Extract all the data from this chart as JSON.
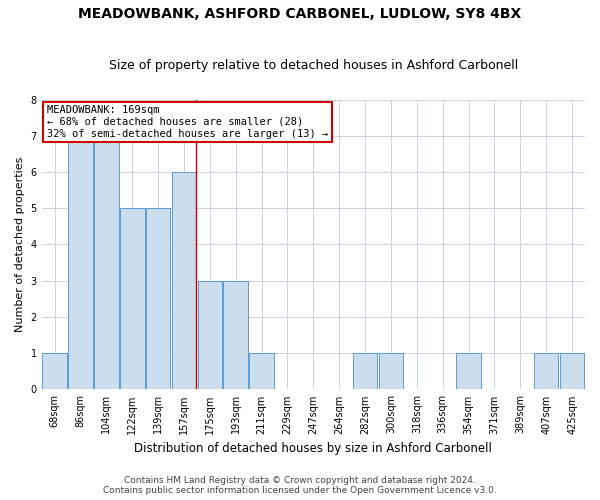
{
  "title1": "MEADOWBANK, ASHFORD CARBONEL, LUDLOW, SY8 4BX",
  "title2": "Size of property relative to detached houses in Ashford Carbonell",
  "xlabel": "Distribution of detached houses by size in Ashford Carbonell",
  "ylabel": "Number of detached properties",
  "categories": [
    "68sqm",
    "86sqm",
    "104sqm",
    "122sqm",
    "139sqm",
    "157sqm",
    "175sqm",
    "193sqm",
    "211sqm",
    "229sqm",
    "247sqm",
    "264sqm",
    "282sqm",
    "300sqm",
    "318sqm",
    "336sqm",
    "354sqm",
    "371sqm",
    "389sqm",
    "407sqm",
    "425sqm"
  ],
  "values": [
    1,
    7,
    7,
    5,
    5,
    6,
    3,
    3,
    1,
    0,
    0,
    0,
    1,
    1,
    0,
    0,
    1,
    0,
    0,
    1,
    1
  ],
  "bar_color": "#ccdded",
  "bar_edge_color": "#5b9bd5",
  "red_line_index": 5,
  "ylim": [
    0,
    8
  ],
  "yticks": [
    0,
    1,
    2,
    3,
    4,
    5,
    6,
    7,
    8
  ],
  "annotation_box_text": "MEADOWBANK: 169sqm\n← 68% of detached houses are smaller (28)\n32% of semi-detached houses are larger (13) →",
  "annotation_box_color": "#cc0000",
  "footnote1": "Contains HM Land Registry data © Crown copyright and database right 2024.",
  "footnote2": "Contains public sector information licensed under the Open Government Licence v3.0.",
  "bg_color": "#ffffff",
  "grid_color": "#c8d4e4",
  "title1_fontsize": 10,
  "title2_fontsize": 9,
  "xlabel_fontsize": 8.5,
  "ylabel_fontsize": 8,
  "tick_fontsize": 7,
  "annot_fontsize": 7.5,
  "footnote_fontsize": 6.5
}
